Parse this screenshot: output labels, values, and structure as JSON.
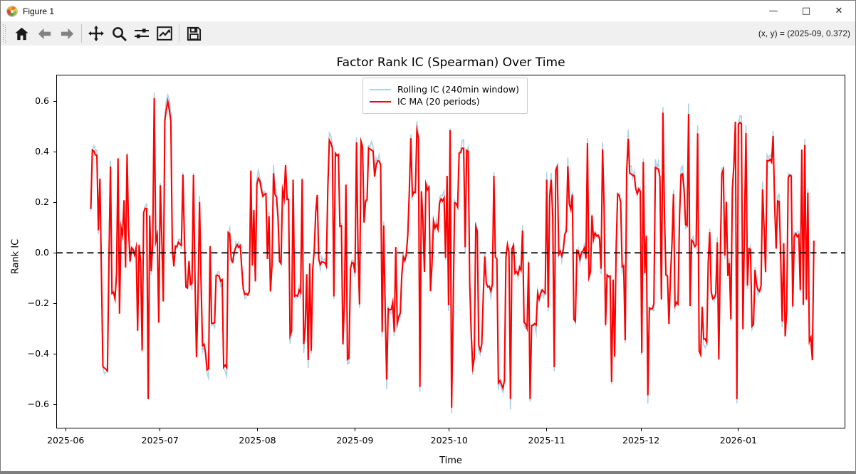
{
  "window": {
    "title": "Figure 1",
    "icon": "matplotlib-logo-icon",
    "controls": {
      "minimize": "—",
      "maximize": "□",
      "close": "✕"
    }
  },
  "toolbar": {
    "icons": [
      "home-icon",
      "back-arrow-icon",
      "forward-arrow-icon",
      "pan-icon",
      "zoom-icon",
      "subplots-sliders-icon",
      "customize-chart-icon",
      "save-icon"
    ],
    "readout": "(x, y) = (2025-09, 0.372)"
  },
  "chart_data": {
    "type": "line",
    "title": "Factor Rank IC (Spearman) Over Time",
    "xlabel": "Time",
    "ylabel": "Rank IC",
    "ylim": [
      -0.695,
      0.705
    ],
    "yticks": [
      -0.6,
      -0.4,
      -0.2,
      0.0,
      0.2,
      0.4,
      0.6
    ],
    "xtick_labels": [
      "2025-06",
      "2025-07",
      "2025-08",
      "2025-09",
      "2025-10",
      "2025-11",
      "2025-12",
      "2026-01"
    ],
    "x_axis_start": "2025-05-29",
    "x_axis_end": "2026-02-04",
    "data_start": "2025-06-09",
    "data_end": "2026-01-25",
    "grid": false,
    "zero_line": {
      "y": 0.0,
      "color": "#000000",
      "style": "dashed",
      "width": 1.8
    },
    "legend_position": "upper center",
    "series": [
      {
        "name": "Rolling IC (240min window)",
        "color": "#afd3e7",
        "line_width": 1.7,
        "role": "raw"
      },
      {
        "name": "IC MA (20 periods)",
        "color": "#ff0000",
        "line_width": 2.1,
        "role": "moving_average",
        "ma_scale": 0.965
      }
    ],
    "generator": {
      "seed": 20250609,
      "n": 480,
      "value_range": [
        -0.635,
        0.635
      ],
      "landmarks": [
        {
          "frac": 0.0,
          "v": 0.18
        },
        {
          "frac": 0.079,
          "v": -0.6
        },
        {
          "frac": 0.087,
          "v": 0.635
        },
        {
          "frac": 0.111,
          "v": 0.54
        },
        {
          "frac": 0.16,
          "v": -0.48,
          "hold": 2
        },
        {
          "frac": 0.27,
          "v": 0.36
        },
        {
          "frac": 0.3,
          "v": -0.44
        },
        {
          "frac": 0.384,
          "v": 0.43,
          "hold": 4
        },
        {
          "frac": 0.41,
          "v": -0.52
        },
        {
          "frac": 0.443,
          "v": 0.47
        },
        {
          "frac": 0.455,
          "v": -0.55
        },
        {
          "frac": 0.499,
          "v": -0.635
        },
        {
          "frac": 0.52,
          "v": 0.42,
          "hold": 2
        },
        {
          "frac": 0.58,
          "v": -0.6
        },
        {
          "frac": 0.608,
          "v": -0.6
        },
        {
          "frac": 0.63,
          "v": 0.3
        },
        {
          "frac": 0.687,
          "v": 0.45
        },
        {
          "frac": 0.72,
          "v": -0.53
        },
        {
          "frac": 0.78,
          "v": 0.35,
          "hold": 3
        },
        {
          "frac": 0.826,
          "v": 0.57
        },
        {
          "frac": 0.84,
          "v": 0.49
        },
        {
          "frac": 0.894,
          "v": -0.6
        },
        {
          "frac": 0.93,
          "v": 0.26
        },
        {
          "frac": 0.97,
          "v": -0.22
        },
        {
          "frac": 1.0,
          "v": 0.05
        }
      ]
    }
  }
}
